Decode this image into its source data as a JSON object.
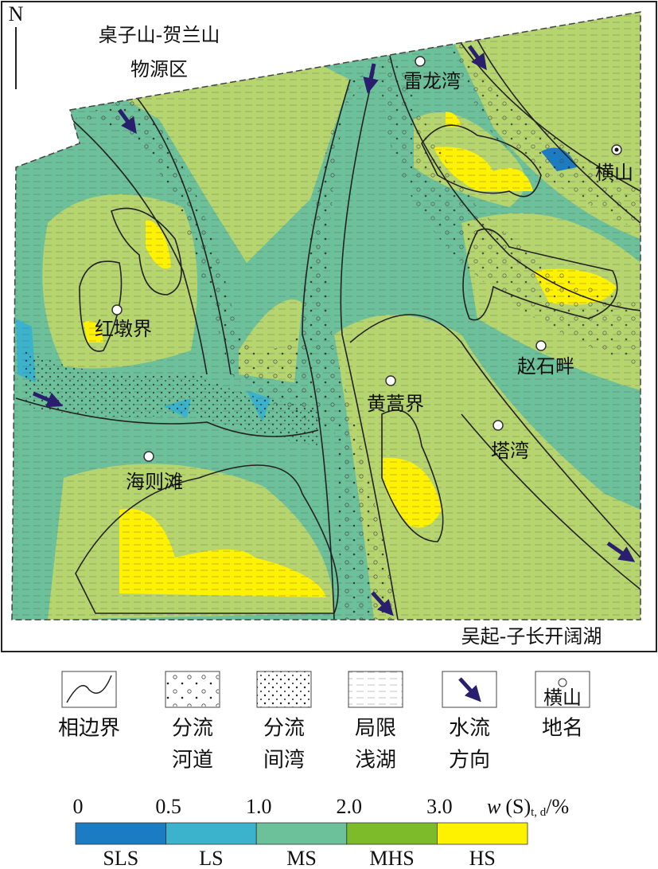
{
  "map": {
    "compass": "N",
    "source_area": [
      "桌子山-贺兰山",
      "物源区"
    ],
    "lake": "吴起-子长开阔湖",
    "places": [
      "雷龙湾",
      "横山",
      "红墩界",
      "赵石畔",
      "黄蒿界",
      "塔湾",
      "海则滩"
    ]
  },
  "legend": {
    "items": [
      [
        "相边界"
      ],
      [
        "分流",
        "河道"
      ],
      [
        "分流",
        "间湾"
      ],
      [
        "局限",
        "浅湖"
      ],
      [
        "水流",
        "方向"
      ],
      [
        "地名"
      ]
    ],
    "sample_place": "横山"
  },
  "scale": {
    "ticks": [
      "0",
      "0.5",
      "1.0",
      "2.0",
      "3.0"
    ],
    "unit": [
      "w",
      "(S)",
      "t, d",
      "/%"
    ],
    "classes": [
      {
        "label": "SLS",
        "color": "#1b7cc4"
      },
      {
        "label": "LS",
        "color": "#3bb3cc"
      },
      {
        "label": "MS",
        "color": "#6cc19a"
      },
      {
        "label": "MHS",
        "color": "#7dbb2a"
      },
      {
        "label": "HS",
        "color": "#fff200"
      }
    ]
  }
}
